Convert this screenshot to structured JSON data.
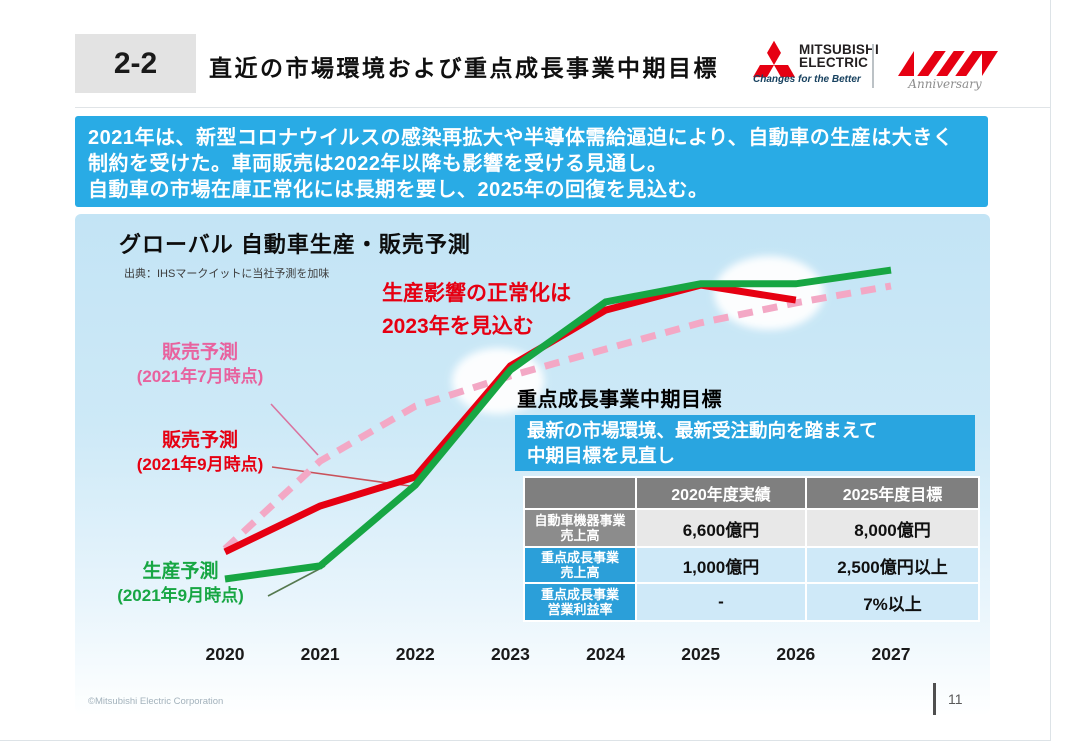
{
  "slide": {
    "section_number": "2-2",
    "title": "直近の市場環境および重点成長事業中期目標",
    "page_number": "11",
    "copyright": "©Mitsubishi Electric Corporation"
  },
  "logo": {
    "brand_line1": "MITSUBISHI",
    "brand_line2": "ELECTRIC",
    "tagline": "Changes for the Better",
    "anniversary_label": "Anniversary",
    "brand_red": "#e60012"
  },
  "banner": {
    "lines": [
      "2021年は、新型コロナウイルスの感染再拡大や半導体需給逼迫により、自動車の生産は大きく",
      "制約を受けた。車両販売は2022年以降も影響を受ける見通し。",
      "自動車の市場在庫正常化には長期を要し、2025年の回復を見込む。"
    ]
  },
  "chart_data": {
    "type": "line",
    "title": "グローバル 自動車生産・販売予測",
    "source": "出典：IHSマークイットに当社予測を加味",
    "annotation": {
      "line1": "生産影響の正常化は",
      "line2": "2023年を見込む",
      "color": "#e60012"
    },
    "x": [
      2020,
      2021,
      2022,
      2023,
      2024,
      2025,
      2026,
      2027
    ],
    "y_axis": "none shown; values are a relative index estimated from the plot (0 = 2020 production level, 100 = 2027 production level)",
    "grid": false,
    "legend_position": "labels beside lines (left side)",
    "series": [
      {
        "id": "sales-forecast-jul2021",
        "name": "販売予測（2021年7月時点）",
        "color": "#f3a8c5",
        "dash": true,
        "values": [
          9.6,
          37.8,
          55.4,
          65.1,
          73.7,
          82.1,
          88.5,
          93.9
        ]
      },
      {
        "id": "sales-forecast-sep2021",
        "name": "販売予測（2021年9月時点）",
        "color": "#e60012",
        "dash": false,
        "values": [
          8.7,
          23.4,
          32.7,
          68.3,
          86.2,
          94.2,
          89.4,
          null
        ]
      },
      {
        "id": "production-forecast-sep2021",
        "name": "生産予測（2021年9月時点）",
        "color": "#17a643",
        "dash": false,
        "values": [
          0,
          4.2,
          30.1,
          67.0,
          88.8,
          94.6,
          94.6,
          99.0
        ]
      }
    ],
    "labels": [
      {
        "text": "販売予測",
        "sub": "(2021年7月時点)",
        "color": "#e8629e"
      },
      {
        "text": "販売予測",
        "sub": "(2021年9月時点)",
        "color": "#e60012"
      },
      {
        "text": "生産予測",
        "sub": "(2021年9月時点)",
        "color": "#17a643"
      }
    ],
    "highlights": "white ellipse highlights at the 2023 crossing point and around 2025–2026"
  },
  "targets": {
    "heading": "重点成長事業中期目標",
    "callout_lines": [
      "最新の市場環境、最新受注動向を踏まえて",
      "中期目標を見直し"
    ],
    "table": {
      "columns": [
        "",
        "2020年度実績",
        "2025年度目標"
      ],
      "rows": [
        {
          "label": [
            "自動車機器事業",
            "売上高"
          ],
          "values": [
            "6,600億円",
            "8,000億円"
          ]
        },
        {
          "label": [
            "重点成長事業",
            "売上高"
          ],
          "values": [
            "1,000億円",
            "2,500億円以上"
          ]
        },
        {
          "label": [
            "重点成長事業",
            "営業利益率"
          ],
          "values": [
            "-",
            "7%以上"
          ]
        }
      ]
    }
  },
  "colors": {
    "banner_bg": "#29abe5",
    "callout_bg": "#29a5e0",
    "table_header_gray": "#7f7f7f",
    "row_label_gray": "#8c8c8c",
    "cell_gray": "#e8e8e8",
    "row_label_blue": "#2b9fd9",
    "cell_blue": "#cfe9f8",
    "panel_sky_top": "#c3e4f5",
    "panel_sky_bottom": "#feffff"
  }
}
